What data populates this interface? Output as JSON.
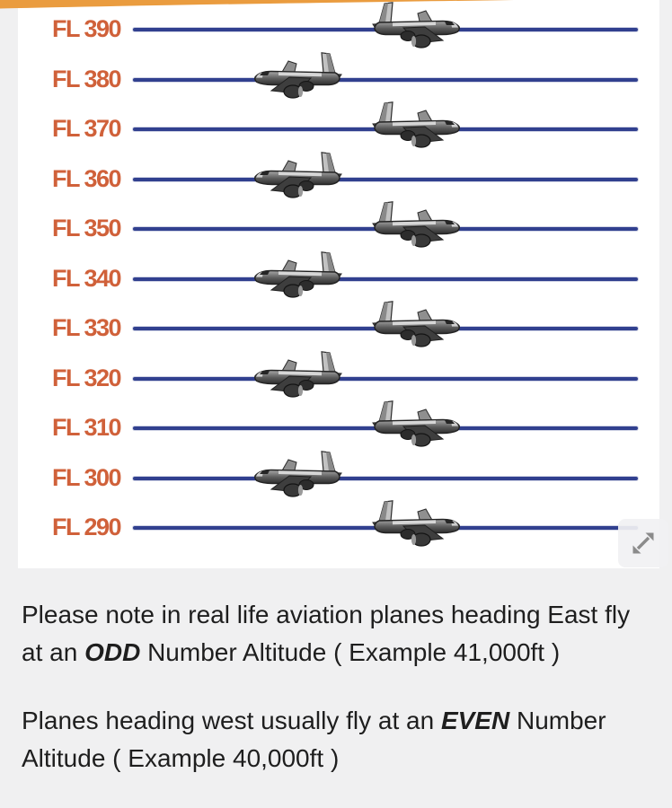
{
  "colors": {
    "page_background": "#f0f0f1",
    "panel_background": "#ffffff",
    "top_bar_orange": "#ea9c3f",
    "label_orange": "#d0613a",
    "line_blue": "#31408f",
    "plane_gray": "#4a4a4a",
    "note_text": "#1e1e1e",
    "expand_icon_gray": "#8b8b8b"
  },
  "diagram": {
    "description": "flight-level-separation-diagram",
    "levels": [
      {
        "label": "FL 390",
        "direction": "east"
      },
      {
        "label": "FL 380",
        "direction": "west"
      },
      {
        "label": "FL 370",
        "direction": "east"
      },
      {
        "label": "FL 360",
        "direction": "west"
      },
      {
        "label": "FL 350",
        "direction": "east"
      },
      {
        "label": "FL 340",
        "direction": "west"
      },
      {
        "label": "FL 330",
        "direction": "east"
      },
      {
        "label": "FL 320",
        "direction": "west"
      },
      {
        "label": "FL 310",
        "direction": "east"
      },
      {
        "label": "FL 300",
        "direction": "west"
      },
      {
        "label": "FL 290",
        "direction": "east"
      }
    ],
    "expand_button": {
      "icon": "expand-diagonal-icon"
    }
  },
  "notes": [
    {
      "before": "Please note in real life aviation planes heading East fly at an ",
      "emphasis": "ODD",
      "after": " Number Altitude ( Example 41,000ft )"
    },
    {
      "before": "Planes heading west usually fly at an ",
      "emphasis": "EVEN",
      "after": " Number Altitude ( Example 40,000ft )"
    }
  ]
}
